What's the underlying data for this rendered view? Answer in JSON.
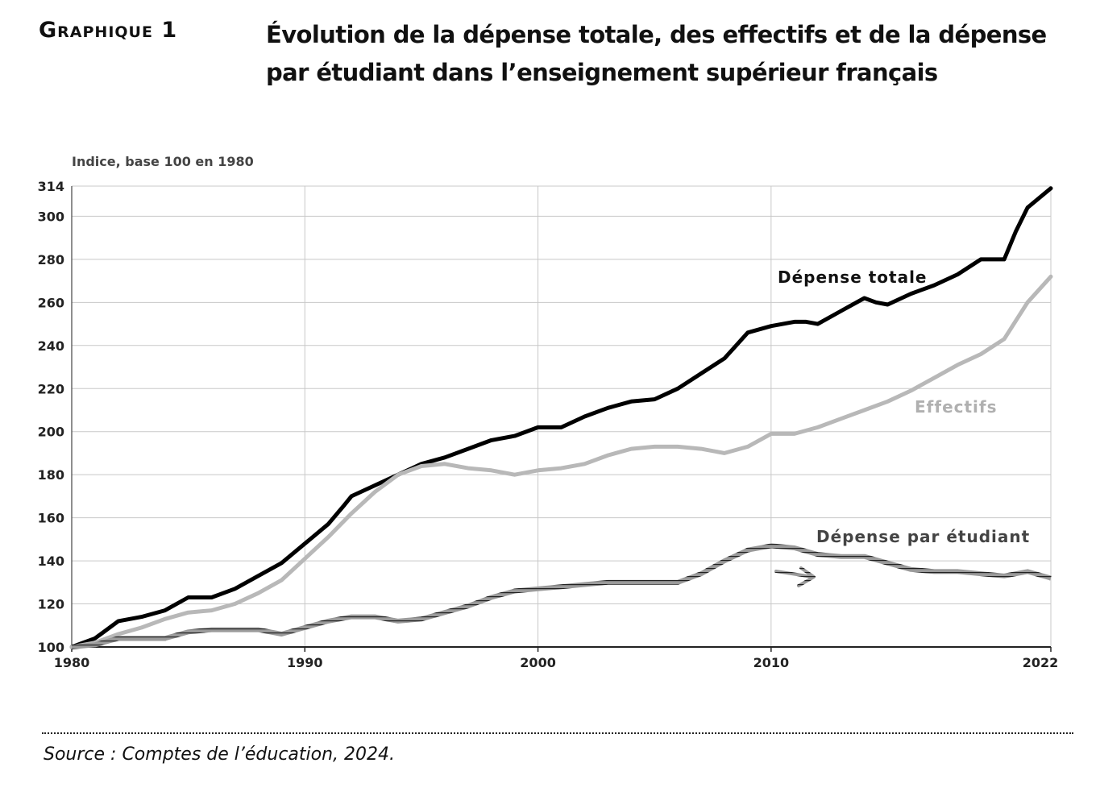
{
  "header": {
    "graph_label": "Graphique 1",
    "title_line1": "Évolution de la dépense totale, des effectifs et de la dépense",
    "title_line2": "par étudiant dans l’enseignement supérieur français"
  },
  "footer": {
    "source": "Source : Comptes de l’éducation, 2024."
  },
  "chart_data": {
    "type": "line",
    "ylabel": "Indice, base 100 en 1980",
    "xlim": [
      1980,
      2022
    ],
    "ylim": [
      100,
      314
    ],
    "yticks": [
      100,
      120,
      140,
      160,
      180,
      200,
      220,
      240,
      260,
      280,
      300,
      314
    ],
    "xticks": [
      1980,
      1990,
      2000,
      2010,
      2022
    ],
    "grid": true,
    "legend": "inline labels",
    "series": [
      {
        "name": "Dépense totale",
        "color": "#000000",
        "style": "solid",
        "points": [
          [
            1980,
            100
          ],
          [
            1981,
            104
          ],
          [
            1982,
            112
          ],
          [
            1983,
            114
          ],
          [
            1984,
            117
          ],
          [
            1985,
            123
          ],
          [
            1986,
            123
          ],
          [
            1987,
            127
          ],
          [
            1988,
            133
          ],
          [
            1989,
            139
          ],
          [
            1990,
            148
          ],
          [
            1991,
            157
          ],
          [
            1991.7,
            166
          ],
          [
            1992,
            170
          ],
          [
            1993,
            175
          ],
          [
            1994,
            180
          ],
          [
            1995,
            185
          ],
          [
            1996,
            188
          ],
          [
            1997,
            192
          ],
          [
            1998,
            196
          ],
          [
            1999,
            198
          ],
          [
            2000,
            202
          ],
          [
            2001,
            202
          ],
          [
            2002,
            207
          ],
          [
            2003,
            211
          ],
          [
            2004,
            214
          ],
          [
            2005,
            215
          ],
          [
            2006,
            220
          ],
          [
            2007,
            227
          ],
          [
            2008,
            234
          ],
          [
            2008.5,
            240
          ],
          [
            2009,
            246
          ],
          [
            2010,
            249
          ],
          [
            2011,
            251
          ],
          [
            2011.5,
            251
          ],
          [
            2012,
            250
          ],
          [
            2013,
            256
          ],
          [
            2014,
            262
          ],
          [
            2014.5,
            260
          ],
          [
            2015,
            259
          ],
          [
            2016,
            264
          ],
          [
            2017,
            268
          ],
          [
            2018,
            273
          ],
          [
            2019,
            280
          ],
          [
            2020,
            280
          ],
          [
            2020.5,
            293
          ],
          [
            2021,
            304
          ],
          [
            2022,
            313
          ]
        ]
      },
      {
        "name": "Effectifs",
        "color": "#b8b8b8",
        "style": "solid",
        "points": [
          [
            1980,
            100
          ],
          [
            1981,
            102
          ],
          [
            1982,
            106
          ],
          [
            1983,
            109
          ],
          [
            1984,
            113
          ],
          [
            1985,
            116
          ],
          [
            1986,
            117
          ],
          [
            1987,
            120
          ],
          [
            1988,
            125
          ],
          [
            1989,
            131
          ],
          [
            1990,
            141
          ],
          [
            1991,
            151
          ],
          [
            1992,
            162
          ],
          [
            1993,
            172
          ],
          [
            1994,
            180
          ],
          [
            1995,
            184
          ],
          [
            1996,
            185
          ],
          [
            1997,
            183
          ],
          [
            1998,
            182
          ],
          [
            1999,
            180
          ],
          [
            2000,
            182
          ],
          [
            2001,
            183
          ],
          [
            2002,
            185
          ],
          [
            2003,
            189
          ],
          [
            2004,
            192
          ],
          [
            2005,
            193
          ],
          [
            2006,
            193
          ],
          [
            2007,
            192
          ],
          [
            2008,
            190
          ],
          [
            2009,
            193
          ],
          [
            2010,
            199
          ],
          [
            2011,
            199
          ],
          [
            2012,
            202
          ],
          [
            2013,
            206
          ],
          [
            2014,
            210
          ],
          [
            2015,
            214
          ],
          [
            2016,
            219
          ],
          [
            2017,
            225
          ],
          [
            2018,
            231
          ],
          [
            2019,
            236
          ],
          [
            2020,
            243
          ],
          [
            2021,
            260
          ],
          [
            2022,
            272
          ]
        ]
      },
      {
        "name": "Dépense par étudiant",
        "color": "#555555",
        "style": "hatched",
        "points": [
          [
            1980,
            100
          ],
          [
            1981,
            101
          ],
          [
            1982,
            104
          ],
          [
            1983,
            104
          ],
          [
            1984,
            104
          ],
          [
            1985,
            107
          ],
          [
            1986,
            108
          ],
          [
            1987,
            108
          ],
          [
            1988,
            108
          ],
          [
            1989,
            106
          ],
          [
            1990,
            109
          ],
          [
            1991,
            112
          ],
          [
            1992,
            114
          ],
          [
            1993,
            114
          ],
          [
            1994,
            112
          ],
          [
            1995,
            113
          ],
          [
            1996,
            116
          ],
          [
            1997,
            119
          ],
          [
            1998,
            123
          ],
          [
            1999,
            126
          ],
          [
            2000,
            127
          ],
          [
            2001,
            128
          ],
          [
            2002,
            129
          ],
          [
            2003,
            130
          ],
          [
            2004,
            130
          ],
          [
            2005,
            130
          ],
          [
            2006,
            130
          ],
          [
            2007,
            134
          ],
          [
            2008,
            140
          ],
          [
            2009,
            145
          ],
          [
            2010,
            147
          ],
          [
            2011,
            146
          ],
          [
            2012,
            143
          ],
          [
            2013,
            142
          ],
          [
            2014,
            142
          ],
          [
            2015,
            139
          ],
          [
            2016,
            136
          ],
          [
            2017,
            135
          ],
          [
            2018,
            135
          ],
          [
            2019,
            134
          ],
          [
            2020,
            133
          ],
          [
            2021,
            135
          ],
          [
            2022,
            132
          ]
        ]
      }
    ]
  }
}
